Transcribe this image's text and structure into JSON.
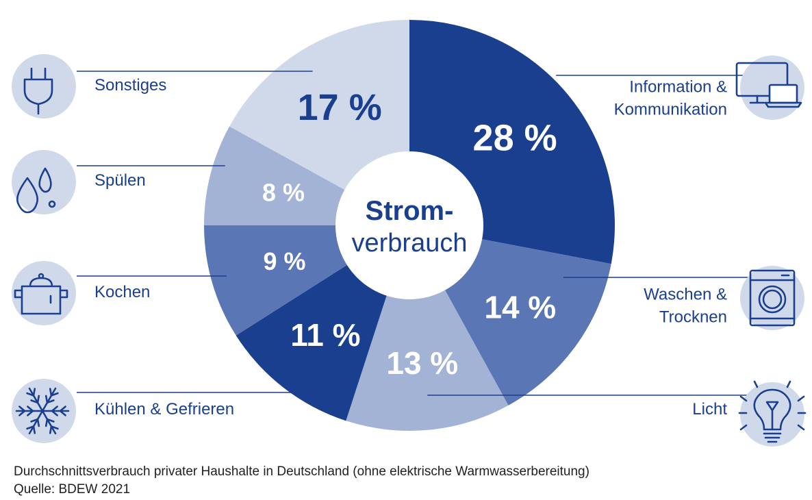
{
  "chart_data": {
    "type": "pie",
    "center_label_line1": "Strom-",
    "center_label_line2": "verbrauch",
    "slices": [
      {
        "label": "Information & Kommunikation",
        "label_lines": [
          "Information &",
          "Kommunikation"
        ],
        "value": 28,
        "value_label": "28 %",
        "color": "#1a3f8f",
        "text_color": "#ffffff",
        "icon": "monitor-laptop-icon",
        "side": "right"
      },
      {
        "label": "Waschen & Trocknen",
        "label_lines": [
          "Waschen &",
          "Trocknen"
        ],
        "value": 14,
        "value_label": "14 %",
        "color": "#5b76b4",
        "text_color": "#ffffff",
        "icon": "washing-machine-icon",
        "side": "right"
      },
      {
        "label": "Licht",
        "label_lines": [
          "Licht"
        ],
        "value": 13,
        "value_label": "13 %",
        "color": "#a2b3d6",
        "text_color": "#ffffff",
        "icon": "lightbulb-icon",
        "side": "right"
      },
      {
        "label": "Kühlen & Gefrieren",
        "label_lines": [
          "Kühlen & Gefrieren"
        ],
        "value": 11,
        "value_label": "11 %",
        "color": "#1a3f8f",
        "text_color": "#ffffff",
        "icon": "snowflake-icon",
        "side": "left"
      },
      {
        "label": "Kochen",
        "label_lines": [
          "Kochen"
        ],
        "value": 9,
        "value_label": "9 %",
        "color": "#5b76b4",
        "text_color": "#ffffff",
        "icon": "cooking-pot-icon",
        "side": "left"
      },
      {
        "label": "Spülen",
        "label_lines": [
          "Spülen"
        ],
        "value": 8,
        "value_label": "8 %",
        "color": "#a2b3d6",
        "text_color": "#ffffff",
        "icon": "water-drops-icon",
        "side": "left"
      },
      {
        "label": "Sonstiges",
        "label_lines": [
          "Sonstiges"
        ],
        "value": 17,
        "value_label": "17 %",
        "color": "#d0d9ea",
        "text_color": "#1a3f8f",
        "icon": "plug-icon",
        "side": "left"
      }
    ],
    "colors": {
      "primary": "#1a3f8f",
      "icon_circle": "#d0d9ea",
      "label_text": "#1a3f8f"
    }
  },
  "footnote": {
    "description": "Durchschnittsverbrauch privater Haushalte in Deutschland (ohne elektrische Warmwasserbereitung)",
    "source": "Quelle: BDEW 2021"
  }
}
